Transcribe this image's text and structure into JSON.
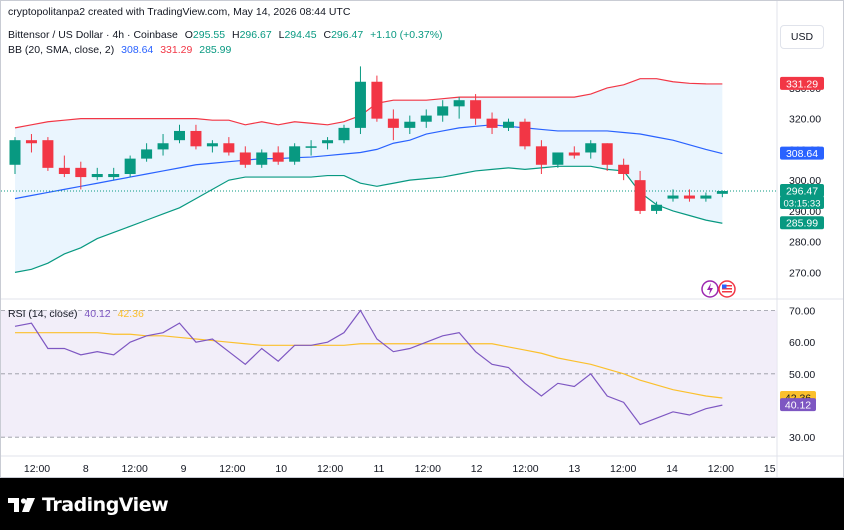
{
  "watermark": "cryptopolitanpa2 created with TradingView.com, May 14, 2026 08:44 UTC",
  "symbol": {
    "title": "Bittensor / US Dollar · 4h · Coinbase",
    "o_label": "O",
    "o": "295.55",
    "h_label": "H",
    "h": "296.67",
    "l_label": "L",
    "l": "294.45",
    "c_label": "C",
    "c": "296.47",
    "change": "+1.10 (+0.37%)"
  },
  "bb_legend": {
    "label": "BB (20, SMA, close, 2)",
    "basis": "308.64",
    "upper": "331.29",
    "lower": "285.99"
  },
  "rsi_legend": {
    "label": "RSI (14, close)",
    "rsi": "40.12",
    "ma": "42.36"
  },
  "currency_button": "USD",
  "footer_brand": "TradingView",
  "colors": {
    "up": "#089981",
    "down": "#f23645",
    "bb_basis": "#2962ff",
    "bb_upper": "#f23645",
    "bb_lower": "#089981",
    "bb_fill": "#e3f2fd",
    "rsi": "#7e57c2",
    "rsi_ma": "#fbc02d",
    "rsi_band": "#ede7f6",
    "price_line": "#089981"
  },
  "icons": [
    "lightning-icon",
    "flag-us-icon"
  ],
  "chart_data": [
    {
      "type": "candlestick",
      "title": "Bittensor / US Dollar · 4h · Coinbase",
      "ylim": [
        262,
        342
      ],
      "y_ticks": [
        270,
        280,
        290,
        300,
        310,
        320,
        330
      ],
      "y_tick_labels": [
        "270.00",
        "280.00",
        "290.00",
        "300.00",
        "310.00",
        "320.00",
        "330.00"
      ],
      "x_tick_labels": [
        "12:00",
        "8",
        "12:00",
        "9",
        "12:00",
        "10",
        "12:00",
        "11",
        "12:00",
        "12",
        "12:00",
        "13",
        "12:00",
        "14",
        "12:00",
        "15"
      ],
      "price_labels": [
        {
          "label": "331.29",
          "value": 331.29,
          "kind": "upper"
        },
        {
          "label": "308.64",
          "value": 308.64,
          "kind": "basis"
        },
        {
          "label": "296.47",
          "value": 296.47,
          "kind": "last"
        },
        {
          "label": "03:15:33",
          "value": 296.47,
          "kind": "countdown"
        },
        {
          "label": "285.99",
          "value": 285.99,
          "kind": "lower"
        }
      ],
      "candles": [
        {
          "o": 305,
          "h": 314,
          "l": 302,
          "c": 313
        },
        {
          "o": 313,
          "h": 315,
          "l": 309,
          "c": 312
        },
        {
          "o": 313,
          "h": 314,
          "l": 303,
          "c": 304
        },
        {
          "o": 304,
          "h": 308,
          "l": 301,
          "c": 302
        },
        {
          "o": 304,
          "h": 306,
          "l": 297,
          "c": 301
        },
        {
          "o": 301,
          "h": 304,
          "l": 300,
          "c": 302
        },
        {
          "o": 301,
          "h": 304,
          "l": 300,
          "c": 302
        },
        {
          "o": 302,
          "h": 308,
          "l": 301,
          "c": 307
        },
        {
          "o": 307,
          "h": 312,
          "l": 306,
          "c": 310
        },
        {
          "o": 310,
          "h": 315,
          "l": 308,
          "c": 312
        },
        {
          "o": 313,
          "h": 318,
          "l": 312,
          "c": 316
        },
        {
          "o": 316,
          "h": 318,
          "l": 310,
          "c": 311
        },
        {
          "o": 311,
          "h": 313,
          "l": 309,
          "c": 312
        },
        {
          "o": 312,
          "h": 314,
          "l": 308,
          "c": 309
        },
        {
          "o": 309,
          "h": 311,
          "l": 304,
          "c": 305
        },
        {
          "o": 305,
          "h": 310,
          "l": 304,
          "c": 309
        },
        {
          "o": 309,
          "h": 311,
          "l": 305,
          "c": 306
        },
        {
          "o": 306,
          "h": 312,
          "l": 305,
          "c": 311
        },
        {
          "o": 311,
          "h": 313,
          "l": 308,
          "c": 311
        },
        {
          "o": 312,
          "h": 314,
          "l": 310,
          "c": 313
        },
        {
          "o": 313,
          "h": 318,
          "l": 312,
          "c": 317
        },
        {
          "o": 317,
          "h": 337,
          "l": 315,
          "c": 332
        },
        {
          "o": 332,
          "h": 334,
          "l": 319,
          "c": 320
        },
        {
          "o": 320,
          "h": 323,
          "l": 313,
          "c": 317
        },
        {
          "o": 317,
          "h": 321,
          "l": 315,
          "c": 319
        },
        {
          "o": 319,
          "h": 323,
          "l": 317,
          "c": 321
        },
        {
          "o": 321,
          "h": 326,
          "l": 319,
          "c": 324
        },
        {
          "o": 324,
          "h": 327,
          "l": 320,
          "c": 326
        },
        {
          "o": 326,
          "h": 328,
          "l": 318,
          "c": 320
        },
        {
          "o": 320,
          "h": 322,
          "l": 315,
          "c": 317
        },
        {
          "o": 317,
          "h": 320,
          "l": 316,
          "c": 319
        },
        {
          "o": 319,
          "h": 320,
          "l": 310,
          "c": 311
        },
        {
          "o": 311,
          "h": 313,
          "l": 302,
          "c": 305
        },
        {
          "o": 305,
          "h": 309,
          "l": 304,
          "c": 309
        },
        {
          "o": 309,
          "h": 311,
          "l": 307,
          "c": 308
        },
        {
          "o": 309,
          "h": 313,
          "l": 307,
          "c": 312
        },
        {
          "o": 312,
          "h": 312,
          "l": 303,
          "c": 305
        },
        {
          "o": 305,
          "h": 307,
          "l": 300,
          "c": 302
        },
        {
          "o": 300,
          "h": 303,
          "l": 289,
          "c": 290
        },
        {
          "o": 290,
          "h": 293,
          "l": 289,
          "c": 292
        },
        {
          "o": 294,
          "h": 297,
          "l": 293,
          "c": 295
        },
        {
          "o": 295,
          "h": 297,
          "l": 293,
          "c": 294
        },
        {
          "o": 294,
          "h": 296,
          "l": 293,
          "c": 295
        },
        {
          "o": 295.55,
          "h": 296.67,
          "l": 294.45,
          "c": 296.47
        }
      ],
      "series": [
        {
          "name": "BB upper",
          "values": [
            317,
            318,
            319,
            319.5,
            320,
            320,
            320,
            320,
            320,
            320,
            320,
            320,
            319.5,
            319.5,
            318,
            319,
            318,
            319,
            318.5,
            318,
            319,
            321,
            325,
            326,
            326,
            326,
            326.5,
            327,
            327,
            327,
            327,
            327,
            327,
            327,
            327,
            328,
            330,
            331,
            333,
            333,
            332,
            331.5,
            331.3,
            331.29
          ]
        },
        {
          "name": "BB basis",
          "values": [
            294,
            295,
            296,
            297,
            298,
            299,
            300,
            301,
            302,
            303,
            304,
            305,
            305.5,
            306,
            306.5,
            307,
            307,
            307.3,
            307.5,
            308,
            308.5,
            309,
            310,
            312,
            313,
            315,
            316,
            317,
            317.5,
            318,
            317.5,
            317,
            316.5,
            316,
            316,
            316,
            316,
            315.5,
            315,
            314,
            313,
            311.5,
            310,
            308.64
          ]
        },
        {
          "name": "BB lower",
          "values": [
            270,
            271,
            273,
            276,
            278,
            281,
            283,
            285,
            287,
            289,
            291,
            294,
            297,
            300,
            301,
            301,
            301,
            301,
            301,
            301.5,
            301.5,
            299,
            298,
            299,
            300,
            300.5,
            301,
            302,
            303,
            303.5,
            304,
            303.5,
            304,
            304.5,
            304.5,
            304.5,
            303.5,
            303,
            296,
            292,
            290,
            288.5,
            287,
            285.99
          ]
        }
      ]
    },
    {
      "type": "line",
      "title": "RSI (14, close)",
      "ylim": [
        25,
        73
      ],
      "y_ticks": [
        30,
        40,
        50,
        60,
        70
      ],
      "y_tick_labels": [
        "30.00",
        "40.00",
        "50.00",
        "60.00",
        "70.00"
      ],
      "band": [
        30,
        70
      ],
      "midline": 50,
      "price_labels": [
        {
          "label": "42.36",
          "value": 42.36,
          "kind": "ma"
        },
        {
          "label": "40.12",
          "value": 40.12,
          "kind": "rsi"
        }
      ],
      "series": [
        {
          "name": "RSI",
          "values": [
            65,
            66,
            58,
            58,
            56,
            57,
            56,
            60,
            62,
            63,
            66,
            60,
            61,
            57,
            53,
            58,
            54,
            59,
            59,
            60,
            63,
            70,
            61,
            57,
            58,
            60,
            62,
            63,
            57,
            53,
            52,
            47,
            43,
            47,
            46,
            50,
            43,
            41,
            34,
            36,
            38,
            37,
            39,
            40.12
          ]
        },
        {
          "name": "RSI-based MA",
          "values": [
            63,
            63,
            63,
            63,
            63,
            63,
            62.5,
            62.5,
            62,
            62,
            61.5,
            61,
            60.5,
            60,
            59.5,
            59,
            59,
            59,
            59,
            59,
            59,
            59.5,
            59.5,
            59.5,
            59.5,
            59.5,
            59.5,
            59.5,
            59.5,
            59.5,
            58.5,
            57.5,
            56.5,
            55,
            54,
            53,
            51.5,
            50,
            48,
            46.5,
            45,
            44,
            43,
            42.36
          ]
        }
      ]
    }
  ]
}
